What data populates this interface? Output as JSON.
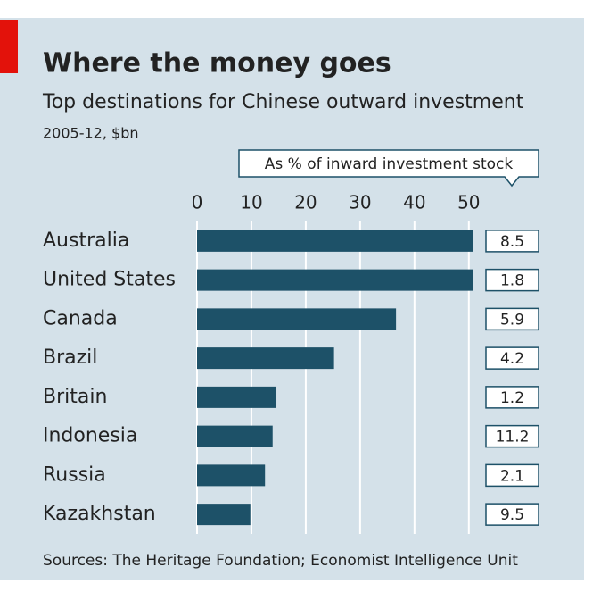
{
  "chart_data": {
    "type": "bar",
    "orientation": "horizontal",
    "title": "Where the money goes",
    "subtitle": "Top destinations for Chinese outward investment",
    "unit_label": "2005-12, $bn",
    "side_label": "As % of inward investment stock",
    "categories": [
      "Australia",
      "United States",
      "Canada",
      "Brazil",
      "Britain",
      "Indonesia",
      "Russia",
      "Kazakhstan"
    ],
    "values": [
      50.8,
      50.7,
      36.6,
      25.2,
      14.6,
      13.9,
      12.5,
      9.8
    ],
    "side_values": [
      "8.5",
      "1.8",
      "5.9",
      "4.2",
      "1.2",
      "11.2",
      "2.1",
      "9.5"
    ],
    "color": "#1d5168",
    "xlim": [
      0,
      52
    ],
    "xticks": [
      0,
      10,
      20,
      30,
      40,
      50
    ],
    "grid": true,
    "source": "Sources: The Heritage Foundation; Economist Intelligence Unit"
  }
}
